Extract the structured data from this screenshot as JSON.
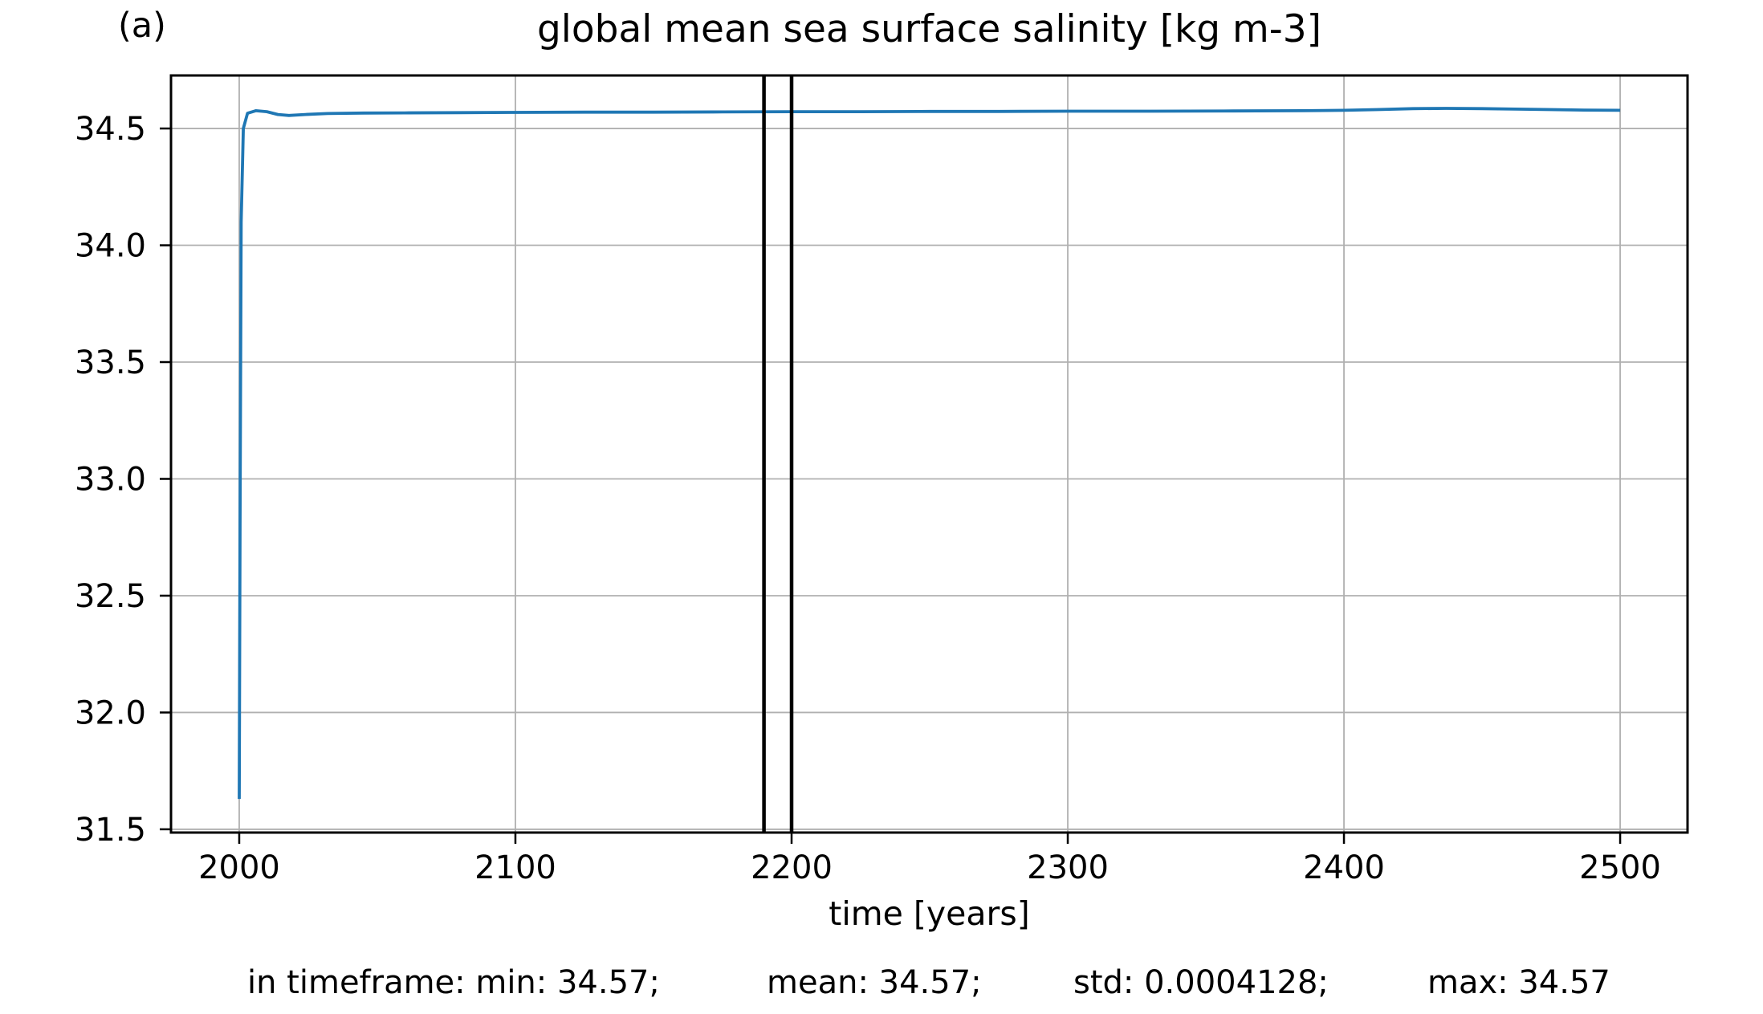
{
  "panel_label": "(a)",
  "chart_data": {
    "type": "line",
    "title": "global mean sea surface salinity [kg m-3]",
    "xlabel": "time [years]",
    "ylabel": "",
    "xlim": [
      1975.3,
      2524.4
    ],
    "ylim": [
      31.486,
      34.727
    ],
    "xticks": [
      2000,
      2100,
      2200,
      2300,
      2400,
      2500
    ],
    "xtick_labels": [
      "2000",
      "2100",
      "2200",
      "2300",
      "2400",
      "2500"
    ],
    "yticks": [
      31.5,
      32.0,
      32.5,
      33.0,
      33.5,
      34.0,
      34.5
    ],
    "ytick_labels": [
      "31.5",
      "32.0",
      "32.5",
      "33.0",
      "33.5",
      "34.0",
      "34.5"
    ],
    "grid": true,
    "legend": "none",
    "series": [
      {
        "name": "global mean sea surface salinity",
        "color": "#1f77b4",
        "points": [
          [
            2000.0,
            31.63
          ],
          [
            2000.3,
            32.8
          ],
          [
            2000.7,
            34.1
          ],
          [
            2001.5,
            34.5
          ],
          [
            2003,
            34.565
          ],
          [
            2006,
            34.576
          ],
          [
            2010,
            34.572
          ],
          [
            2014,
            34.56
          ],
          [
            2018,
            34.556
          ],
          [
            2024,
            34.56
          ],
          [
            2032,
            34.564
          ],
          [
            2045,
            34.566
          ],
          [
            2060,
            34.567
          ],
          [
            2080,
            34.568
          ],
          [
            2100,
            34.569
          ],
          [
            2125,
            34.57
          ],
          [
            2150,
            34.57
          ],
          [
            2175,
            34.571
          ],
          [
            2200,
            34.572
          ],
          [
            2225,
            34.572
          ],
          [
            2250,
            34.573
          ],
          [
            2275,
            34.573
          ],
          [
            2300,
            34.574
          ],
          [
            2330,
            34.574
          ],
          [
            2360,
            34.575
          ],
          [
            2385,
            34.576
          ],
          [
            2400,
            34.578
          ],
          [
            2412,
            34.581
          ],
          [
            2425,
            34.585
          ],
          [
            2437,
            34.586
          ],
          [
            2450,
            34.585
          ],
          [
            2462,
            34.583
          ],
          [
            2475,
            34.581
          ],
          [
            2487,
            34.579
          ],
          [
            2500,
            34.578
          ]
        ]
      }
    ],
    "marker_lines": {
      "years": [
        2190,
        2200
      ],
      "color": "#000000"
    },
    "colors": {
      "line": "#1f77b4",
      "grid": "#b0b0b0",
      "frame": "#000000",
      "marker": "#000000",
      "background": "#ffffff",
      "text": "#000000"
    }
  },
  "stats": {
    "segments": [
      "in timeframe: min: 34.57;",
      "mean: 34.57;",
      "std: 0.0004128;",
      "max: 34.57"
    ]
  }
}
